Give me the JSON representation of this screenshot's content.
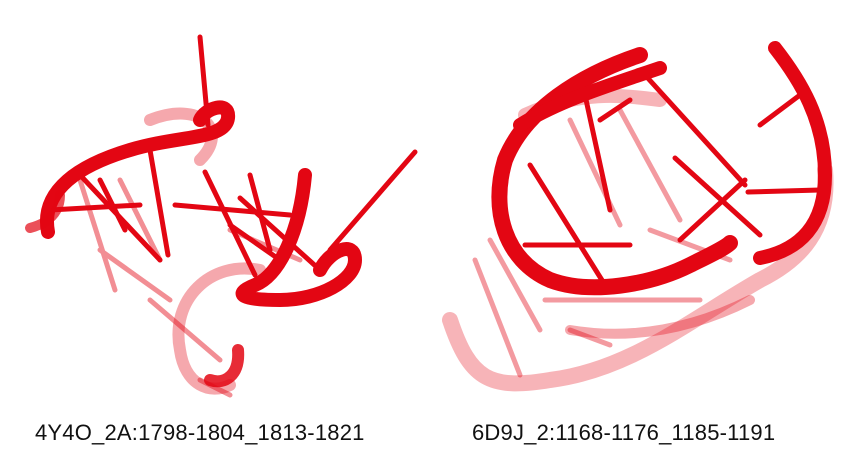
{
  "panels": [
    {
      "caption": "4Y4O_2A:1798-1804_1813-1821"
    },
    {
      "caption": "6D9J_2:1168-1176_1185-1191"
    }
  ],
  "colors": {
    "backbone": "#e30613",
    "backbone_faded": "#ef7b80",
    "background": "#ffffff"
  }
}
